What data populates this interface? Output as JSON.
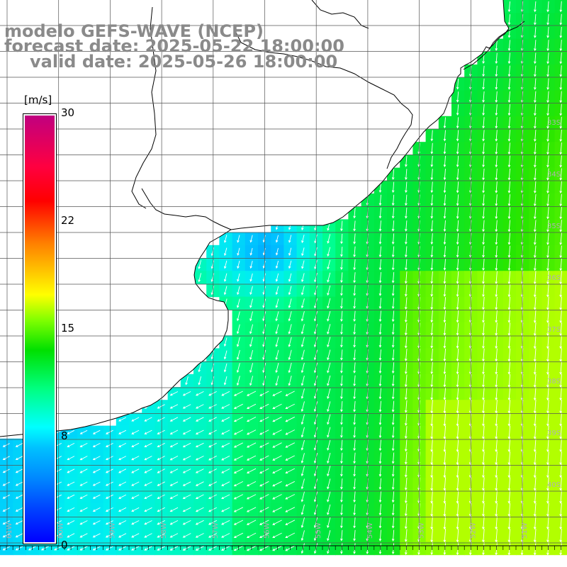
{
  "title": {
    "line1": "modelo GEFS-WAVE (NCEP)",
    "line2": "forecast date: 2025-05-22 18:00:00",
    "line3": "valid date: 2025-05-26 18:00:00"
  },
  "colorbar": {
    "unit": "[m/s]",
    "labels": [
      "30",
      "22",
      "15",
      "8",
      "0"
    ],
    "values": [
      30,
      22,
      15,
      8,
      0
    ],
    "min": 0,
    "max": 30
  },
  "axes": {
    "lon_labels": [
      "61W",
      "60W",
      "59W",
      "58W",
      "57W",
      "56W",
      "55W",
      "54W",
      "53W",
      "52W",
      "51W"
    ],
    "lat_labels": [
      "33S",
      "34S",
      "35S",
      "36S",
      "37S",
      "38S",
      "39S",
      "40S"
    ]
  },
  "colors": {
    "land": "#ffffff",
    "coast": "#000000",
    "grid": "#555555",
    "arrows": "#ffffff",
    "title": "#8a8a8a"
  },
  "field": {
    "variable": "wind speed",
    "unit": "m/s",
    "rows": [
      "000000000000000000000000000000000000000000000000000000000000000000000000000111110",
      "000000000000000000000000000000000000000000000000000000000000000000000000111222220",
      "000000000000000000000000000000000000000000000000000000000000000000000011122222220",
      "000000000000000000000000000000000000000000000000000000000000000000000112222222220",
      "000000000000000000000000000000000000000000000000000000000000000000012222222222230",
      "000000000000000000000000000000000000000000000000000000000000000001222222222223330",
      "000000000000000000000000000000000000000000000000000000000000000122222222222333330",
      "000000000000000000000000000000000000000000000000000000000000012222222222233333330",
      "000000000000000000000000000000000000000000000000000000000012222222222333333333330",
      "000000000000000000000000000000000000000000000000000000011222222223333333333333330",
      "000000000000000000000000000000000000000000000000000011222222222333333333333333330",
      "000000000000000000000000000000000000000000000000112222222222233333333333333333330",
      "000000000000000000000000000000000000000000001122222222222223333333333333333333330"
    ]
  }
}
